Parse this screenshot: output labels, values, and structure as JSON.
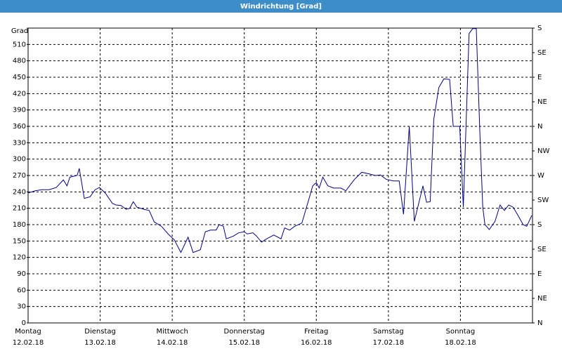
{
  "chart_data": {
    "type": "line",
    "title": "Windrichtung [Grad]",
    "y_label": "Grad",
    "xlim": [
      0,
      7
    ],
    "ylim": [
      0,
      540
    ],
    "y2lim": [
      0,
      540
    ],
    "xticks": [
      {
        "value": 0,
        "label": "Montag",
        "date": "12.02.18"
      },
      {
        "value": 1,
        "label": "Dienstag",
        "date": "13.02.18"
      },
      {
        "value": 2,
        "label": "Mittwoch",
        "date": "14.02.18"
      },
      {
        "value": 3,
        "label": "Donnerstag",
        "date": "15.02.18"
      },
      {
        "value": 4,
        "label": "Freitag",
        "date": "16.02.18"
      },
      {
        "value": 5,
        "label": "Samstag",
        "date": "17.02.18"
      },
      {
        "value": 6,
        "label": "Sonntag",
        "date": "18.02.18"
      }
    ],
    "yticks": [
      0,
      30,
      60,
      90,
      120,
      150,
      180,
      210,
      240,
      270,
      300,
      330,
      360,
      390,
      420,
      450,
      480,
      510
    ],
    "y2ticks": [
      {
        "value": 0,
        "label": "N"
      },
      {
        "value": 45,
        "label": "NE"
      },
      {
        "value": 90,
        "label": "E"
      },
      {
        "value": 135,
        "label": "SE"
      },
      {
        "value": 180,
        "label": "S"
      },
      {
        "value": 225,
        "label": "SW"
      },
      {
        "value": 270,
        "label": "W"
      },
      {
        "value": 315,
        "label": "NW"
      },
      {
        "value": 360,
        "label": "N"
      },
      {
        "value": 405,
        "label": "NE"
      },
      {
        "value": 450,
        "label": "E"
      },
      {
        "value": 495,
        "label": "SE"
      },
      {
        "value": 540,
        "label": "S"
      }
    ],
    "grid": true,
    "x": [
      0,
      0.1,
      0.19,
      0.29,
      0.39,
      0.49,
      0.54,
      0.58,
      0.68,
      0.71,
      0.78,
      0.86,
      0.93,
      0.99,
      1.07,
      1.17,
      1.22,
      1.29,
      1.36,
      1.41,
      1.46,
      1.51,
      1.61,
      1.68,
      1.75,
      1.85,
      1.95,
      2.03,
      2.12,
      2.22,
      2.29,
      2.39,
      2.46,
      2.53,
      2.61,
      2.65,
      2.71,
      2.75,
      2.85,
      2.92,
      3.0,
      3.04,
      3.12,
      3.17,
      3.24,
      3.31,
      3.41,
      3.51,
      3.56,
      3.63,
      3.7,
      3.8,
      3.88,
      3.95,
      4.0,
      4.04,
      4.09,
      4.16,
      4.24,
      4.34,
      4.41,
      4.46,
      4.53,
      4.63,
      4.73,
      4.82,
      4.89,
      4.97,
      5.07,
      5.15,
      5.21,
      5.29,
      5.36,
      5.48,
      5.53,
      5.58,
      5.63,
      5.7,
      5.77,
      5.85,
      5.9,
      5.99,
      6.04,
      6.12,
      6.17,
      6.22,
      6.27,
      6.31,
      6.34,
      6.4,
      6.48,
      6.55,
      6.61,
      6.67,
      6.73,
      6.79,
      6.87,
      6.92,
      6.99
    ],
    "series": [
      {
        "color": "#00008b",
        "values": [
          238,
          242,
          244,
          244,
          248,
          262,
          251,
          267,
          270,
          283,
          228,
          231,
          244,
          248,
          238,
          219,
          216,
          215,
          208,
          210,
          222,
          212,
          208,
          206,
          185,
          177,
          162,
          152,
          129,
          157,
          129,
          134,
          167,
          170,
          170,
          180,
          177,
          154,
          159,
          165,
          167,
          163,
          165,
          159,
          148,
          154,
          161,
          154,
          174,
          170,
          177,
          183,
          219,
          251,
          257,
          247,
          267,
          251,
          247,
          247,
          242,
          251,
          263,
          276,
          273,
          270,
          271,
          263,
          260,
          260,
          199,
          360,
          186,
          251,
          221,
          222,
          373,
          431,
          447,
          446,
          360,
          360,
          212,
          530,
          539,
          539,
          347,
          212,
          180,
          171,
          186,
          216,
          206,
          216,
          212,
          199,
          180,
          177,
          197
        ]
      }
    ]
  }
}
